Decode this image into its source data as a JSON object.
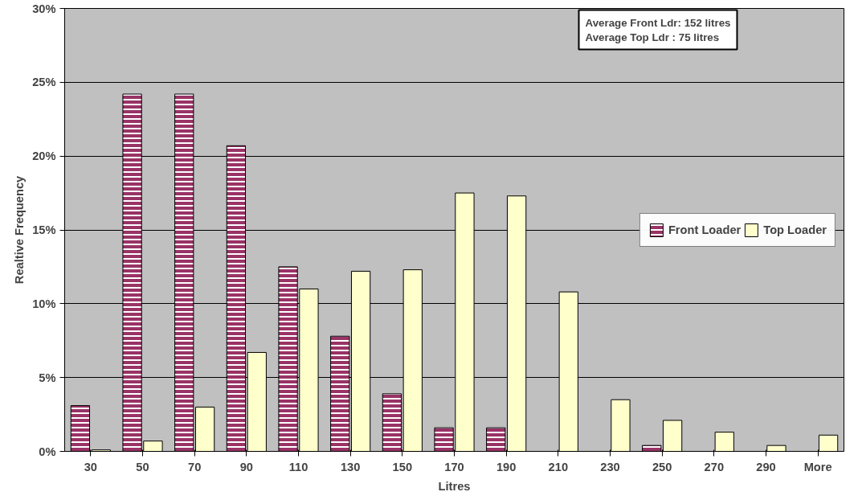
{
  "chart_data": {
    "type": "bar",
    "xlabel": "Litres",
    "ylabel": "Realtive Frequency",
    "categories": [
      "30",
      "50",
      "70",
      "90",
      "110",
      "130",
      "150",
      "170",
      "190",
      "210",
      "230",
      "250",
      "270",
      "290",
      "More"
    ],
    "series": [
      {
        "name": "Front Loader",
        "color": "#993366",
        "values": [
          3.1,
          24.2,
          24.2,
          20.7,
          12.5,
          7.8,
          3.9,
          1.6,
          1.6,
          0,
          0,
          0.4,
          0,
          0,
          0
        ]
      },
      {
        "name": "Top Loader",
        "color": "#ffffcc",
        "values": [
          0.1,
          0.7,
          3.0,
          6.7,
          11.0,
          12.2,
          12.3,
          17.5,
          17.3,
          10.8,
          3.5,
          2.1,
          1.3,
          0.4,
          1.1
        ]
      }
    ],
    "ylim": [
      0,
      30
    ],
    "yticks": [
      {
        "value": 0,
        "label": "0%"
      },
      {
        "value": 5,
        "label": "5%"
      },
      {
        "value": 10,
        "label": "10%"
      },
      {
        "value": 15,
        "label": "15%"
      },
      {
        "value": 20,
        "label": "20%"
      },
      {
        "value": 25,
        "label": "25%"
      },
      {
        "value": 30,
        "label": "30%"
      }
    ],
    "grid": "y",
    "legend": "right",
    "annotations": [
      "Average Front Ldr: 152 litres\nAverage Top Ldr : 75 litres"
    ]
  }
}
